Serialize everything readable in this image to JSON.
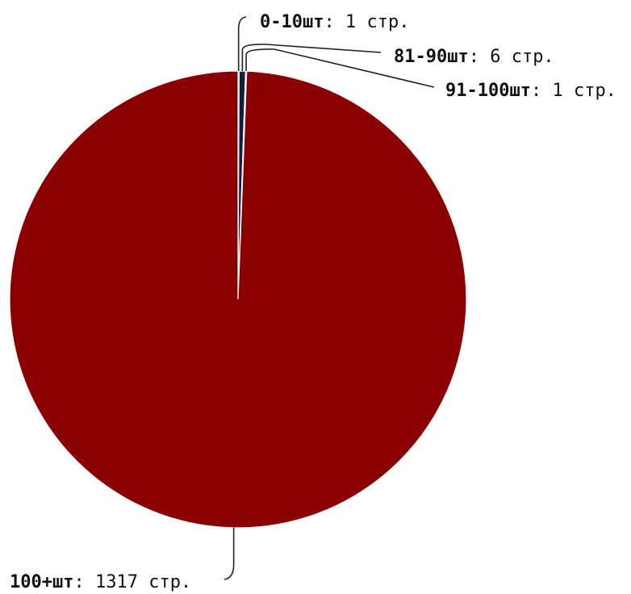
{
  "chart_data": {
    "type": "pie",
    "title": "",
    "slices": [
      {
        "category": "0-10шт",
        "value": 1,
        "unit": ": 1 стр.",
        "color": "#9aa9c0"
      },
      {
        "category": "81-90шт",
        "value": 6,
        "unit": ": 6 стр.",
        "color": "#0f1f3d"
      },
      {
        "category": "91-100шт",
        "value": 1,
        "unit": ": 1 стр.",
        "color": "#2d4a7a"
      },
      {
        "category": "100+шт",
        "value": 1317,
        "unit": ": 1317 стр.",
        "color": "#8b0000"
      }
    ]
  }
}
